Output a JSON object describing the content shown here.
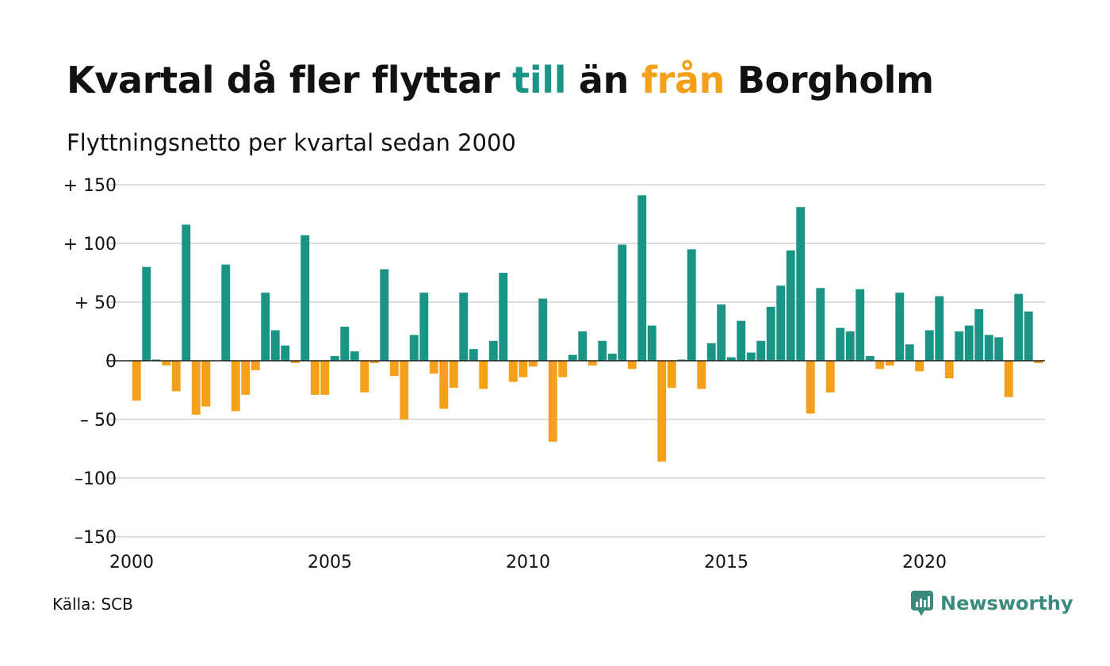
{
  "title": {
    "part1": "Kvartal då fler flyttar ",
    "till": "till",
    "part2": " än ",
    "fran": "från",
    "part3": " Borgholm"
  },
  "subtitle": "Flyttningsnetto per kvartal sedan 2000",
  "source": "Källa: SCB",
  "brand": "Newsworthy",
  "colors": {
    "positive": "#1a9485",
    "negative": "#f5a01a",
    "grid": "#dddddd"
  },
  "chart_data": {
    "type": "bar",
    "title": "Kvartal då fler flyttar till än från Borgholm",
    "subtitle": "Flyttningsnetto per kvartal sedan 2000",
    "xlabel": "",
    "ylabel": "",
    "ylim": [
      -150,
      150
    ],
    "yticks": [
      150,
      100,
      50,
      0,
      -50,
      -100,
      -150
    ],
    "ytick_labels": [
      "+ 150",
      "+ 100",
      "+  50",
      "0",
      "– 50",
      "–100",
      "–150"
    ],
    "xticks": [
      2000,
      2005,
      2010,
      2015,
      2020
    ],
    "xtick_labels": [
      "2000",
      "2005",
      "2010",
      "2015",
      "2020"
    ],
    "x_start": 2000,
    "quarters_per_year": 4,
    "grid": true,
    "values": [
      -34,
      80,
      1,
      -4,
      -26,
      116,
      -46,
      -39,
      0,
      82,
      -43,
      -29,
      -8,
      58,
      26,
      13,
      -2,
      107,
      -29,
      -29,
      4,
      29,
      8,
      -27,
      -2,
      78,
      -13,
      -50,
      22,
      58,
      -11,
      -41,
      -23,
      58,
      10,
      -24,
      17,
      75,
      -18,
      -14,
      -5,
      53,
      -69,
      -14,
      5,
      25,
      -4,
      17,
      6,
      99,
      -7,
      141,
      30,
      -86,
      -23,
      1,
      95,
      -24,
      15,
      48,
      3,
      34,
      7,
      17,
      46,
      64,
      94,
      131,
      -45,
      62,
      -27,
      28,
      25,
      61,
      4,
      -7,
      -4,
      58,
      14,
      -9,
      26,
      55,
      -15,
      25,
      30,
      44,
      22,
      20,
      -31,
      57,
      42,
      -2
    ]
  }
}
